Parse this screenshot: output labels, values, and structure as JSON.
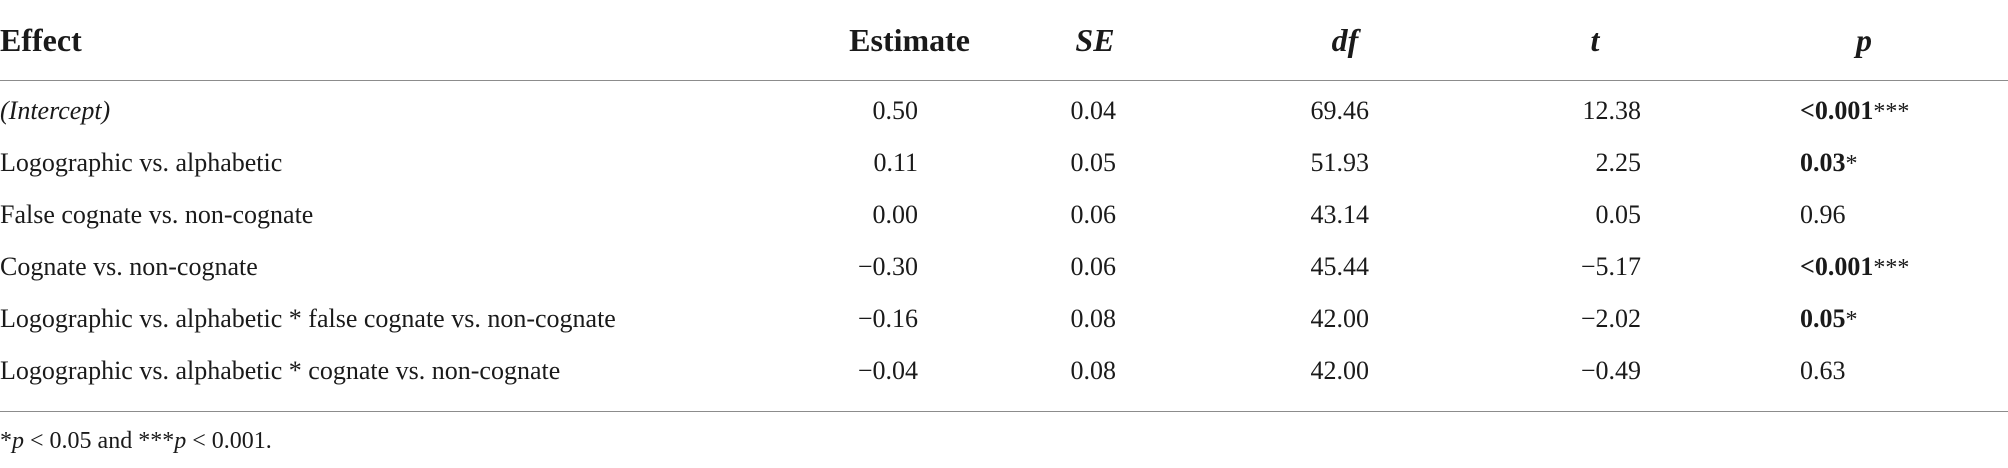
{
  "table": {
    "headers": {
      "effect": "Effect",
      "estimate": "Estimate",
      "se": "SE",
      "df": "df",
      "t": "t",
      "p": "p"
    },
    "rows": [
      {
        "effect": "(Intercept)",
        "estimate": "0.50",
        "se": "0.04",
        "df": "69.46",
        "t": "12.38",
        "p_prefix": "<",
        "p": "0.001",
        "stars": "***"
      },
      {
        "effect": "Logographic vs. alphabetic",
        "estimate": "0.11",
        "se": "0.05",
        "df": "51.93",
        "t": "2.25",
        "p_prefix": "",
        "p": "0.03",
        "stars": "*"
      },
      {
        "effect": "False cognate vs. non-cognate",
        "estimate": "0.00",
        "se": "0.06",
        "df": "43.14",
        "t": "0.05",
        "p_prefix": "",
        "p": "0.96",
        "stars": ""
      },
      {
        "effect": "Cognate vs. non-cognate",
        "estimate": "−0.30",
        "se": "0.06",
        "df": "45.44",
        "t": "−5.17",
        "p_prefix": "<",
        "p": "0.001",
        "stars": "***"
      },
      {
        "effect": "Logographic vs. alphabetic * false cognate vs. non-cognate",
        "estimate": "−0.16",
        "se": "0.08",
        "df": "42.00",
        "t": "−2.02",
        "p_prefix": "",
        "p": "0.05",
        "stars": "*"
      },
      {
        "effect": "Logographic vs. alphabetic * cognate vs. non-cognate",
        "estimate": "−0.04",
        "se": "0.08",
        "df": "42.00",
        "t": "−0.49",
        "p_prefix": "",
        "p": "0.63",
        "stars": ""
      }
    ]
  },
  "footnote": {
    "star1": "*",
    "p1": "p",
    "part1": " < 0.05 and ",
    "star3": "***",
    "p2": "p",
    "part2": " < 0.001."
  }
}
